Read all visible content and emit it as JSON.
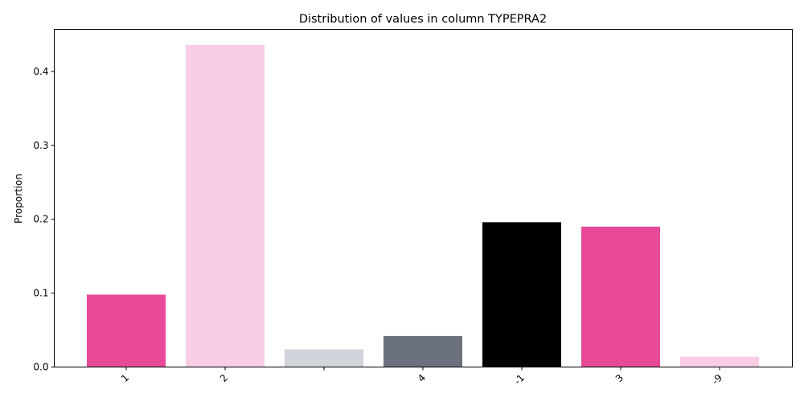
{
  "chart_data": {
    "type": "bar",
    "title": "Distribution of values in column TYPEPRA2",
    "xlabel": "",
    "ylabel": "Proportion",
    "ylim": [
      0,
      0.457
    ],
    "yticks": [
      "0.0",
      "0.1",
      "0.2",
      "0.3",
      "0.4"
    ],
    "ytick_values": [
      0.0,
      0.1,
      0.2,
      0.3,
      0.4
    ],
    "categories": [
      "1",
      "2",
      "",
      "4",
      "-1",
      "3",
      "-9"
    ],
    "values": [
      0.098,
      0.436,
      0.024,
      0.042,
      0.196,
      0.19,
      0.014
    ],
    "colors": [
      "#e84a99",
      "#f9cde6",
      "#d1d4da",
      "#6c7180",
      "#000000",
      "#e84a99",
      "#f9cde6"
    ],
    "grid": false,
    "legend": "none"
  }
}
